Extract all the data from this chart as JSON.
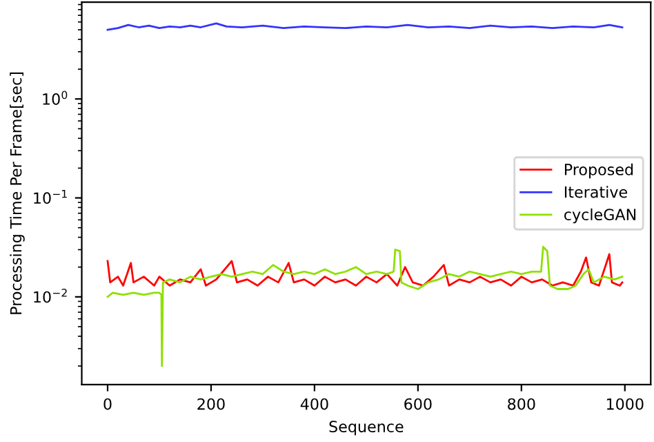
{
  "chart_data": {
    "type": "line",
    "xlabel": "Sequence",
    "ylabel": "Processing Time Per Frame[sec]",
    "log": "y",
    "grid": false,
    "legend": "right",
    "marker": "none",
    "line_style": "solid",
    "xlim": [
      -50,
      1050
    ],
    "xticks": [
      0,
      200,
      400,
      600,
      800,
      1000
    ],
    "ylim": [
      0.0013,
      9.5
    ],
    "yticks": [
      {
        "value": 1,
        "label": "10$^{0}$"
      },
      {
        "value": 0.1,
        "label": "10$^{−1}$"
      },
      {
        "value": 0.01,
        "label": "10$^{−2}$"
      }
    ],
    "series": [
      {
        "name": "Proposed",
        "color": "#ff0000",
        "x": [
          0,
          5,
          20,
          30,
          45,
          50,
          70,
          90,
          100,
          120,
          140,
          160,
          180,
          190,
          210,
          240,
          250,
          270,
          290,
          310,
          330,
          350,
          360,
          380,
          400,
          420,
          440,
          460,
          480,
          500,
          520,
          540,
          560,
          575,
          590,
          610,
          630,
          650,
          660,
          680,
          700,
          720,
          740,
          760,
          780,
          800,
          820,
          840,
          860,
          880,
          900,
          915,
          925,
          935,
          950,
          970,
          975,
          990,
          995
        ],
        "values": [
          0.023,
          0.014,
          0.016,
          0.013,
          0.022,
          0.014,
          0.016,
          0.013,
          0.016,
          0.013,
          0.015,
          0.014,
          0.019,
          0.013,
          0.015,
          0.023,
          0.014,
          0.015,
          0.013,
          0.016,
          0.014,
          0.022,
          0.014,
          0.015,
          0.013,
          0.016,
          0.014,
          0.015,
          0.013,
          0.016,
          0.014,
          0.017,
          0.013,
          0.02,
          0.014,
          0.013,
          0.016,
          0.021,
          0.013,
          0.015,
          0.014,
          0.016,
          0.014,
          0.015,
          0.013,
          0.016,
          0.014,
          0.015,
          0.013,
          0.014,
          0.013,
          0.018,
          0.025,
          0.014,
          0.013,
          0.027,
          0.014,
          0.013,
          0.014
        ]
      },
      {
        "name": "Iterative",
        "color": "#3333ff",
        "x": [
          0,
          20,
          40,
          60,
          80,
          100,
          120,
          140,
          160,
          180,
          210,
          230,
          260,
          300,
          340,
          380,
          420,
          460,
          500,
          540,
          580,
          620,
          660,
          700,
          740,
          780,
          820,
          860,
          900,
          940,
          970,
          995
        ],
        "values": [
          5.0,
          5.2,
          5.6,
          5.3,
          5.5,
          5.2,
          5.4,
          5.3,
          5.5,
          5.3,
          5.8,
          5.4,
          5.3,
          5.5,
          5.2,
          5.4,
          5.3,
          5.2,
          5.4,
          5.3,
          5.6,
          5.3,
          5.4,
          5.2,
          5.5,
          5.3,
          5.4,
          5.2,
          5.4,
          5.3,
          5.6,
          5.3
        ]
      },
      {
        "name": "cycleGAN",
        "color": "#8ee000",
        "x": [
          0,
          10,
          30,
          50,
          70,
          90,
          100,
          104,
          105,
          107,
          120,
          140,
          160,
          180,
          200,
          220,
          240,
          260,
          280,
          300,
          320,
          340,
          360,
          380,
          400,
          420,
          440,
          460,
          480,
          500,
          520,
          540,
          553,
          556,
          565,
          568,
          580,
          600,
          620,
          640,
          660,
          680,
          700,
          720,
          740,
          760,
          780,
          800,
          820,
          838,
          842,
          850,
          855,
          870,
          890,
          905,
          920,
          930,
          940,
          960,
          980,
          995
        ],
        "values": [
          0.01,
          0.011,
          0.0105,
          0.011,
          0.0105,
          0.011,
          0.011,
          0.0105,
          0.002,
          0.014,
          0.015,
          0.014,
          0.016,
          0.015,
          0.016,
          0.017,
          0.016,
          0.017,
          0.018,
          0.017,
          0.021,
          0.018,
          0.017,
          0.018,
          0.017,
          0.019,
          0.017,
          0.018,
          0.02,
          0.017,
          0.018,
          0.017,
          0.018,
          0.03,
          0.029,
          0.014,
          0.013,
          0.012,
          0.014,
          0.015,
          0.017,
          0.016,
          0.018,
          0.017,
          0.016,
          0.017,
          0.018,
          0.017,
          0.018,
          0.018,
          0.032,
          0.029,
          0.013,
          0.012,
          0.012,
          0.013,
          0.017,
          0.019,
          0.014,
          0.016,
          0.015,
          0.016
        ]
      }
    ]
  }
}
